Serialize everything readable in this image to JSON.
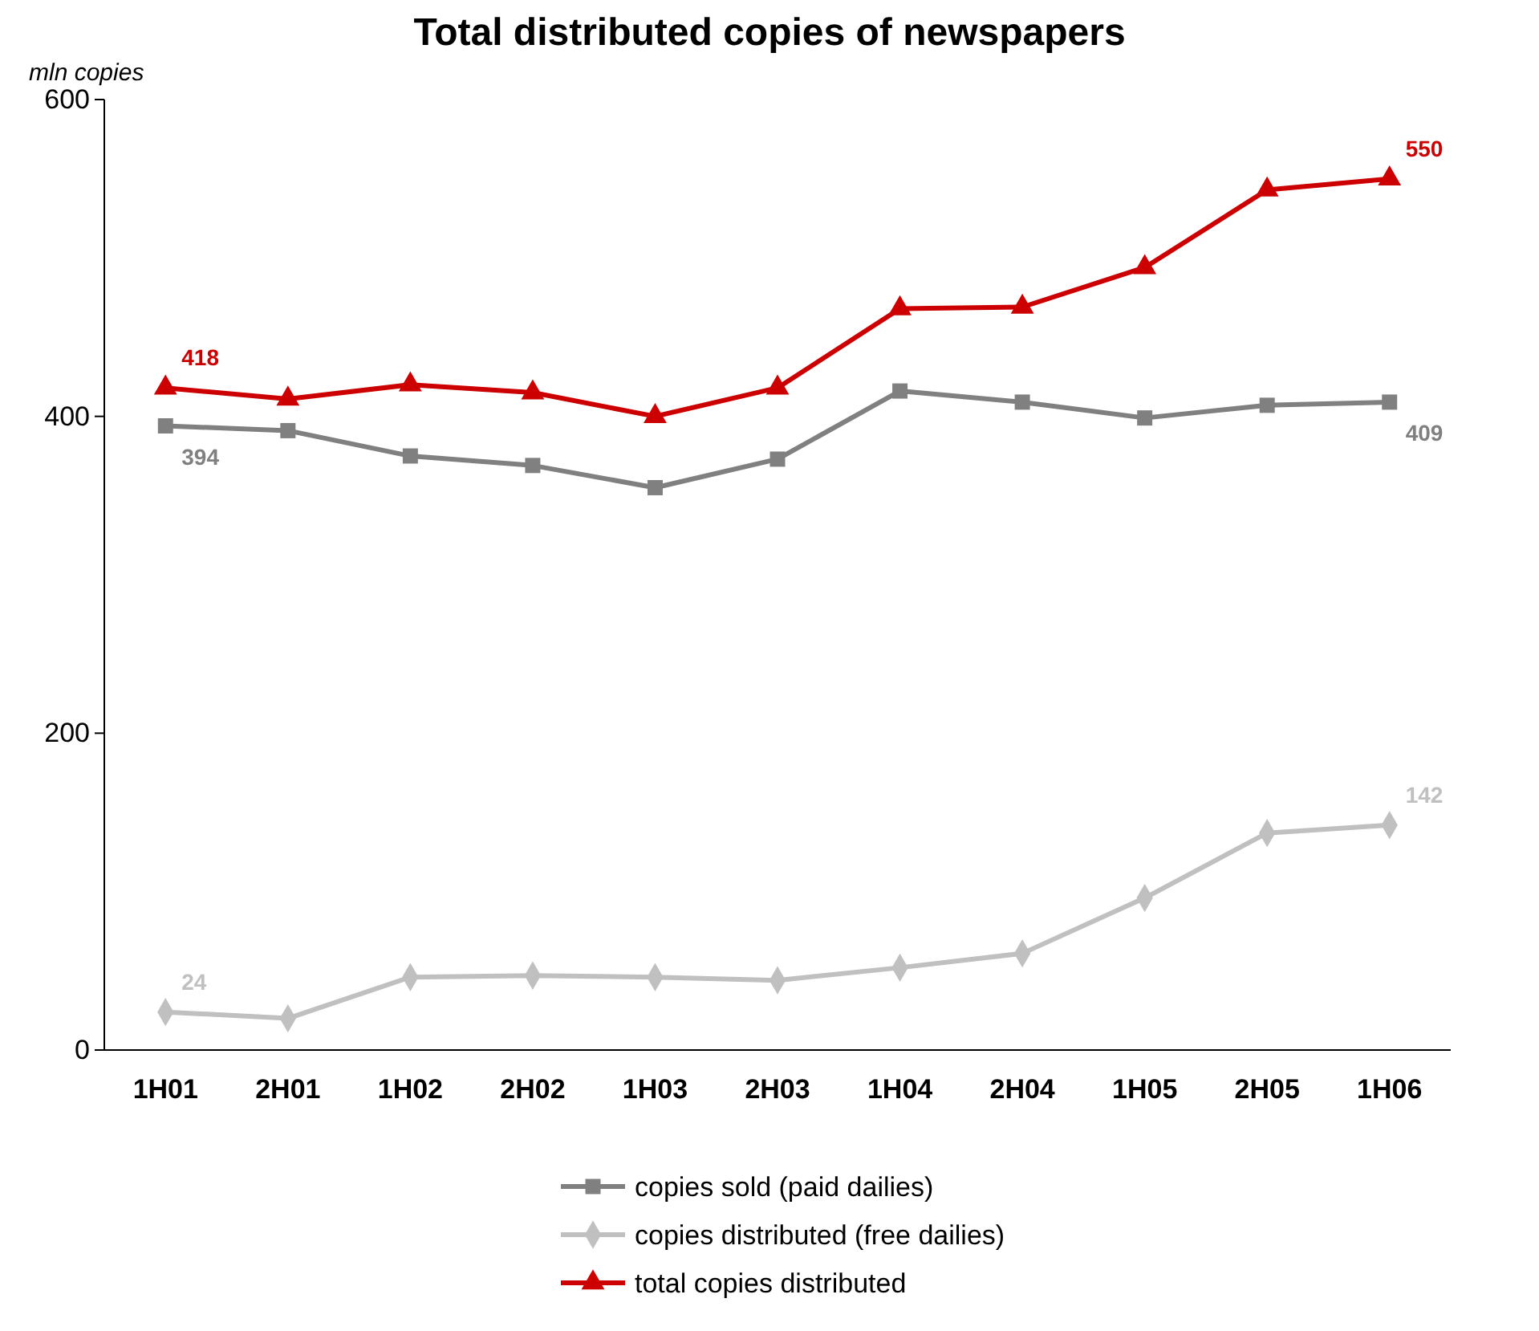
{
  "chart_data": {
    "type": "line",
    "title": "Total distributed copies of newspapers",
    "ylabel": "mln copies",
    "categories": [
      "1H01",
      "2H01",
      "1H02",
      "2H02",
      "1H03",
      "2H03",
      "1H04",
      "2H04",
      "1H05",
      "2H05",
      "1H06"
    ],
    "ylim": [
      0,
      600
    ],
    "yticks": [
      0,
      200,
      400,
      600
    ],
    "grid": false,
    "legend": "bottom",
    "series": [
      {
        "name": "copies sold (paid dailies)",
        "color": "#808080",
        "marker": "square",
        "values": [
          394,
          391,
          375,
          369,
          355,
          373,
          416,
          409,
          399,
          407,
          409
        ],
        "value_labels": [
          "394",
          null,
          null,
          null,
          null,
          null,
          null,
          null,
          null,
          null,
          "409"
        ]
      },
      {
        "name": "copies distributed (free dailies)",
        "color": "#c0c0c0",
        "marker": "diamond",
        "values": [
          24,
          20,
          46,
          47,
          46,
          44,
          52,
          61,
          96,
          137,
          142
        ],
        "value_labels": [
          "24",
          null,
          null,
          null,
          null,
          null,
          null,
          null,
          null,
          null,
          "142"
        ]
      },
      {
        "name": "total copies distributed",
        "color": "#cc0000",
        "marker": "triangle",
        "values": [
          418,
          411,
          420,
          415,
          400,
          418,
          468,
          469,
          494,
          543,
          550
        ],
        "value_labels": [
          "418",
          null,
          null,
          null,
          null,
          null,
          null,
          null,
          null,
          null,
          "550"
        ]
      }
    ]
  }
}
